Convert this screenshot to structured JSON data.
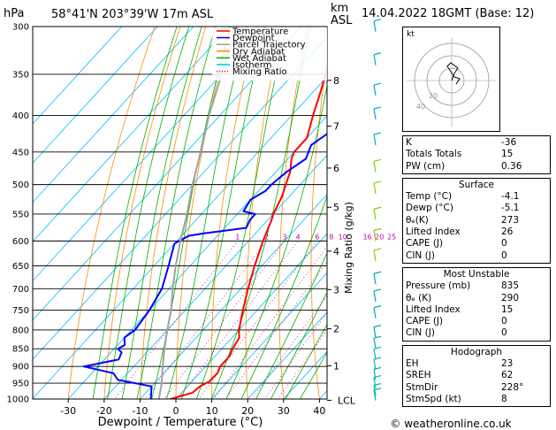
{
  "header": {
    "location": "58°41'N 203°39'W 17m ASL",
    "datetime": "14.04.2022 18GMT (Base: 12)",
    "hpa_label": "hPa",
    "km_label": "km",
    "asl_label": "ASL"
  },
  "footer": {
    "credit": "© weatheronline.co.uk"
  },
  "legend": {
    "items": [
      {
        "label": "Temperature",
        "color": "#ff0000",
        "style": "solid"
      },
      {
        "label": "Dewpoint",
        "color": "#0000ff",
        "style": "solid"
      },
      {
        "label": "Parcel Trajectory",
        "color": "#a0a0a0",
        "style": "solid"
      },
      {
        "label": "Dry Adiabat",
        "color": "#ff8c00",
        "style": "solid"
      },
      {
        "label": "Wet Adiabat",
        "color": "#00b000",
        "style": "solid"
      },
      {
        "label": "Isotherm",
        "color": "#00bfff",
        "style": "solid"
      },
      {
        "label": "Mixing Ratio",
        "color": "#cc0099",
        "style": "dotted"
      }
    ]
  },
  "chart_data": {
    "type": "line",
    "title": "",
    "xlabel": "Dewpoint / Temperature (°C)",
    "ylabel": "",
    "right_axis_label": "Mixing Ratio (g/kg)",
    "xlim": [
      -35,
      40
    ],
    "x_ticks": [
      -30,
      -20,
      -10,
      0,
      10,
      20,
      30,
      40
    ],
    "pressure_levels": [
      300,
      350,
      400,
      450,
      500,
      550,
      600,
      650,
      700,
      750,
      800,
      850,
      900,
      950,
      1000
    ],
    "km_levels": [
      {
        "km": "8",
        "p": 357
      },
      {
        "km": "7",
        "p": 414
      },
      {
        "km": "6",
        "p": 474
      },
      {
        "km": "5",
        "p": 538
      },
      {
        "km": "4",
        "p": 620
      },
      {
        "km": "3",
        "p": 702
      },
      {
        "km": "2",
        "p": 797
      },
      {
        "km": "1",
        "p": 898
      },
      {
        "km": "LCL",
        "p": 1004
      }
    ],
    "mixing_ratio_labels": [
      "1",
      "2",
      "3",
      "4",
      "6",
      "8",
      "10",
      "16",
      "20",
      "25"
    ],
    "series": [
      {
        "name": "Temperature",
        "color": "#ff0000",
        "points": [
          [
            1015,
            -4.1
          ],
          [
            1000,
            -1.5
          ],
          [
            980,
            3
          ],
          [
            960,
            3.5
          ],
          [
            945,
            4.8
          ],
          [
            920,
            5
          ],
          [
            900,
            4
          ],
          [
            870,
            4
          ],
          [
            850,
            3
          ],
          [
            820,
            2
          ],
          [
            800,
            0
          ],
          [
            750,
            -4
          ],
          [
            700,
            -8
          ],
          [
            650,
            -12
          ],
          [
            600,
            -16
          ],
          [
            560,
            -19
          ],
          [
            550,
            -20
          ],
          [
            520,
            -22
          ],
          [
            500,
            -24
          ],
          [
            480,
            -26
          ],
          [
            460,
            -29
          ],
          [
            450,
            -30
          ],
          [
            430,
            -30
          ],
          [
            400,
            -34
          ],
          [
            370,
            -38
          ],
          [
            350,
            -41
          ],
          [
            320,
            -46
          ],
          [
            300,
            -48
          ]
        ]
      },
      {
        "name": "Dewpoint",
        "color": "#0000ff",
        "points": [
          [
            1015,
            -5.1
          ],
          [
            1000,
            -7
          ],
          [
            960,
            -10
          ],
          [
            940,
            -21
          ],
          [
            920,
            -24
          ],
          [
            900,
            -34
          ],
          [
            880,
            -26
          ],
          [
            860,
            -27
          ],
          [
            850,
            -29
          ],
          [
            840,
            -28
          ],
          [
            820,
            -30
          ],
          [
            800,
            -29
          ],
          [
            750,
            -30
          ],
          [
            700,
            -32
          ],
          [
            650,
            -36
          ],
          [
            605,
            -40
          ],
          [
            590,
            -38
          ],
          [
            585,
            -34
          ],
          [
            575,
            -24
          ],
          [
            560,
            -25
          ],
          [
            550,
            -25
          ],
          [
            545,
            -29
          ],
          [
            525,
            -30
          ],
          [
            510,
            -28
          ],
          [
            500,
            -28
          ],
          [
            480,
            -27
          ],
          [
            460,
            -25
          ],
          [
            440,
            -27
          ],
          [
            420,
            -25
          ],
          [
            400,
            -26
          ],
          [
            375,
            -23
          ],
          [
            365,
            -24
          ],
          [
            355,
            -22
          ],
          [
            340,
            -23
          ],
          [
            320,
            -19
          ],
          [
            300,
            -17
          ]
        ]
      },
      {
        "name": "Parcel Trajectory",
        "color": "#a0a0a0",
        "points": [
          [
            1004,
            -4.5
          ],
          [
            950,
            -8
          ],
          [
            900,
            -12
          ],
          [
            850,
            -16
          ],
          [
            800,
            -20
          ],
          [
            750,
            -24
          ],
          [
            700,
            -29
          ],
          [
            650,
            -34
          ],
          [
            600,
            -39
          ],
          [
            550,
            -44
          ],
          [
            500,
            -50
          ],
          [
            450,
            -56
          ],
          [
            400,
            -63
          ],
          [
            350,
            -70
          ],
          [
            300,
            -78
          ]
        ]
      }
    ]
  },
  "hodograph": {
    "label": "kt",
    "ring_labels": [
      "20",
      "40"
    ]
  },
  "indices": {
    "general": [
      {
        "label": "K",
        "value": "-36"
      },
      {
        "label": "Totals Totals",
        "value": "15"
      },
      {
        "label": "PW (cm)",
        "value": "0.36"
      }
    ],
    "surface": {
      "title": "Surface",
      "rows": [
        {
          "label": "Temp (°C)",
          "value": "-4.1"
        },
        {
          "label": "Dewp (°C)",
          "value": "-5.1"
        },
        {
          "label": "θₑ(K)",
          "value": "273"
        },
        {
          "label": "Lifted Index",
          "value": "26"
        },
        {
          "label": "CAPE (J)",
          "value": "0"
        },
        {
          "label": "CIN (J)",
          "value": "0"
        }
      ]
    },
    "most_unstable": {
      "title": "Most Unstable",
      "rows": [
        {
          "label": "Pressure (mb)",
          "value": "835"
        },
        {
          "label": "θₑ (K)",
          "value": "290"
        },
        {
          "label": "Lifted Index",
          "value": "15"
        },
        {
          "label": "CAPE (J)",
          "value": "0"
        },
        {
          "label": "CIN (J)",
          "value": "0"
        }
      ]
    },
    "hodograph_box": {
      "title": "Hodograph",
      "rows": [
        {
          "label": "EH",
          "value": "23"
        },
        {
          "label": "SREH",
          "value": "62"
        },
        {
          "label": "StmDir",
          "value": "228°"
        },
        {
          "label": "StmSpd (kt)",
          "value": "8"
        }
      ]
    }
  }
}
